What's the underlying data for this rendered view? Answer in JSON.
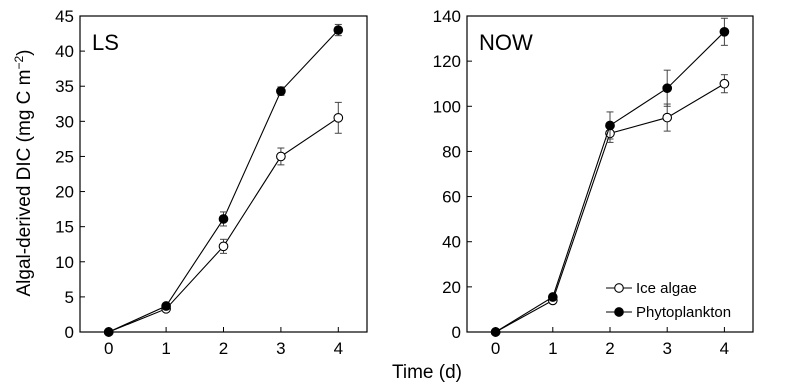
{
  "figure": {
    "y_axis_label": "Algal-derived DIC (mg C m",
    "y_axis_label_sup": "−2",
    "y_axis_label_end": ")",
    "x_axis_label": "Time (d)"
  },
  "legend": {
    "items": [
      {
        "label": "Ice algae",
        "marker": "open-circle"
      },
      {
        "label": "Phytoplankton",
        "marker": "filled-circle"
      }
    ]
  },
  "chart_data": [
    {
      "type": "line",
      "panel_label": "LS",
      "x": [
        0,
        1,
        2,
        3,
        4
      ],
      "xticks": [
        "0",
        "1",
        "2",
        "3",
        "4"
      ],
      "xlim": [
        -0.5,
        4.5
      ],
      "ylim": [
        0,
        45
      ],
      "yticks": [
        "0",
        "5",
        "10",
        "15",
        "20",
        "25",
        "30",
        "35",
        "40",
        "45"
      ],
      "grid": false,
      "series": [
        {
          "name": "Ice algae",
          "marker": "open-circle",
          "values": [
            0,
            3.3,
            12.2,
            25.0,
            30.5
          ],
          "errors": [
            0,
            0.3,
            1.0,
            1.2,
            2.2
          ]
        },
        {
          "name": "Phytoplankton",
          "marker": "filled-circle",
          "values": [
            0,
            3.7,
            16.1,
            34.3,
            43.0
          ],
          "errors": [
            0,
            0.3,
            1.0,
            0.6,
            0.8
          ]
        }
      ]
    },
    {
      "type": "line",
      "panel_label": "NOW",
      "x": [
        0,
        1,
        2,
        3,
        4
      ],
      "xticks": [
        "0",
        "1",
        "2",
        "3",
        "4"
      ],
      "xlim": [
        -0.5,
        4.5
      ],
      "ylim": [
        0,
        140
      ],
      "yticks": [
        "0",
        "20",
        "40",
        "60",
        "80",
        "100",
        "120",
        "140"
      ],
      "grid": false,
      "legend_position": "bottom-right",
      "series": [
        {
          "name": "Ice algae",
          "marker": "open-circle",
          "values": [
            0,
            14,
            88,
            95,
            110
          ],
          "errors": [
            0,
            1,
            4,
            6,
            4
          ]
        },
        {
          "name": "Phytoplankton",
          "marker": "filled-circle",
          "values": [
            0,
            15.5,
            91.5,
            108,
            133
          ],
          "errors": [
            0,
            1,
            6,
            8,
            6
          ]
        }
      ]
    }
  ]
}
